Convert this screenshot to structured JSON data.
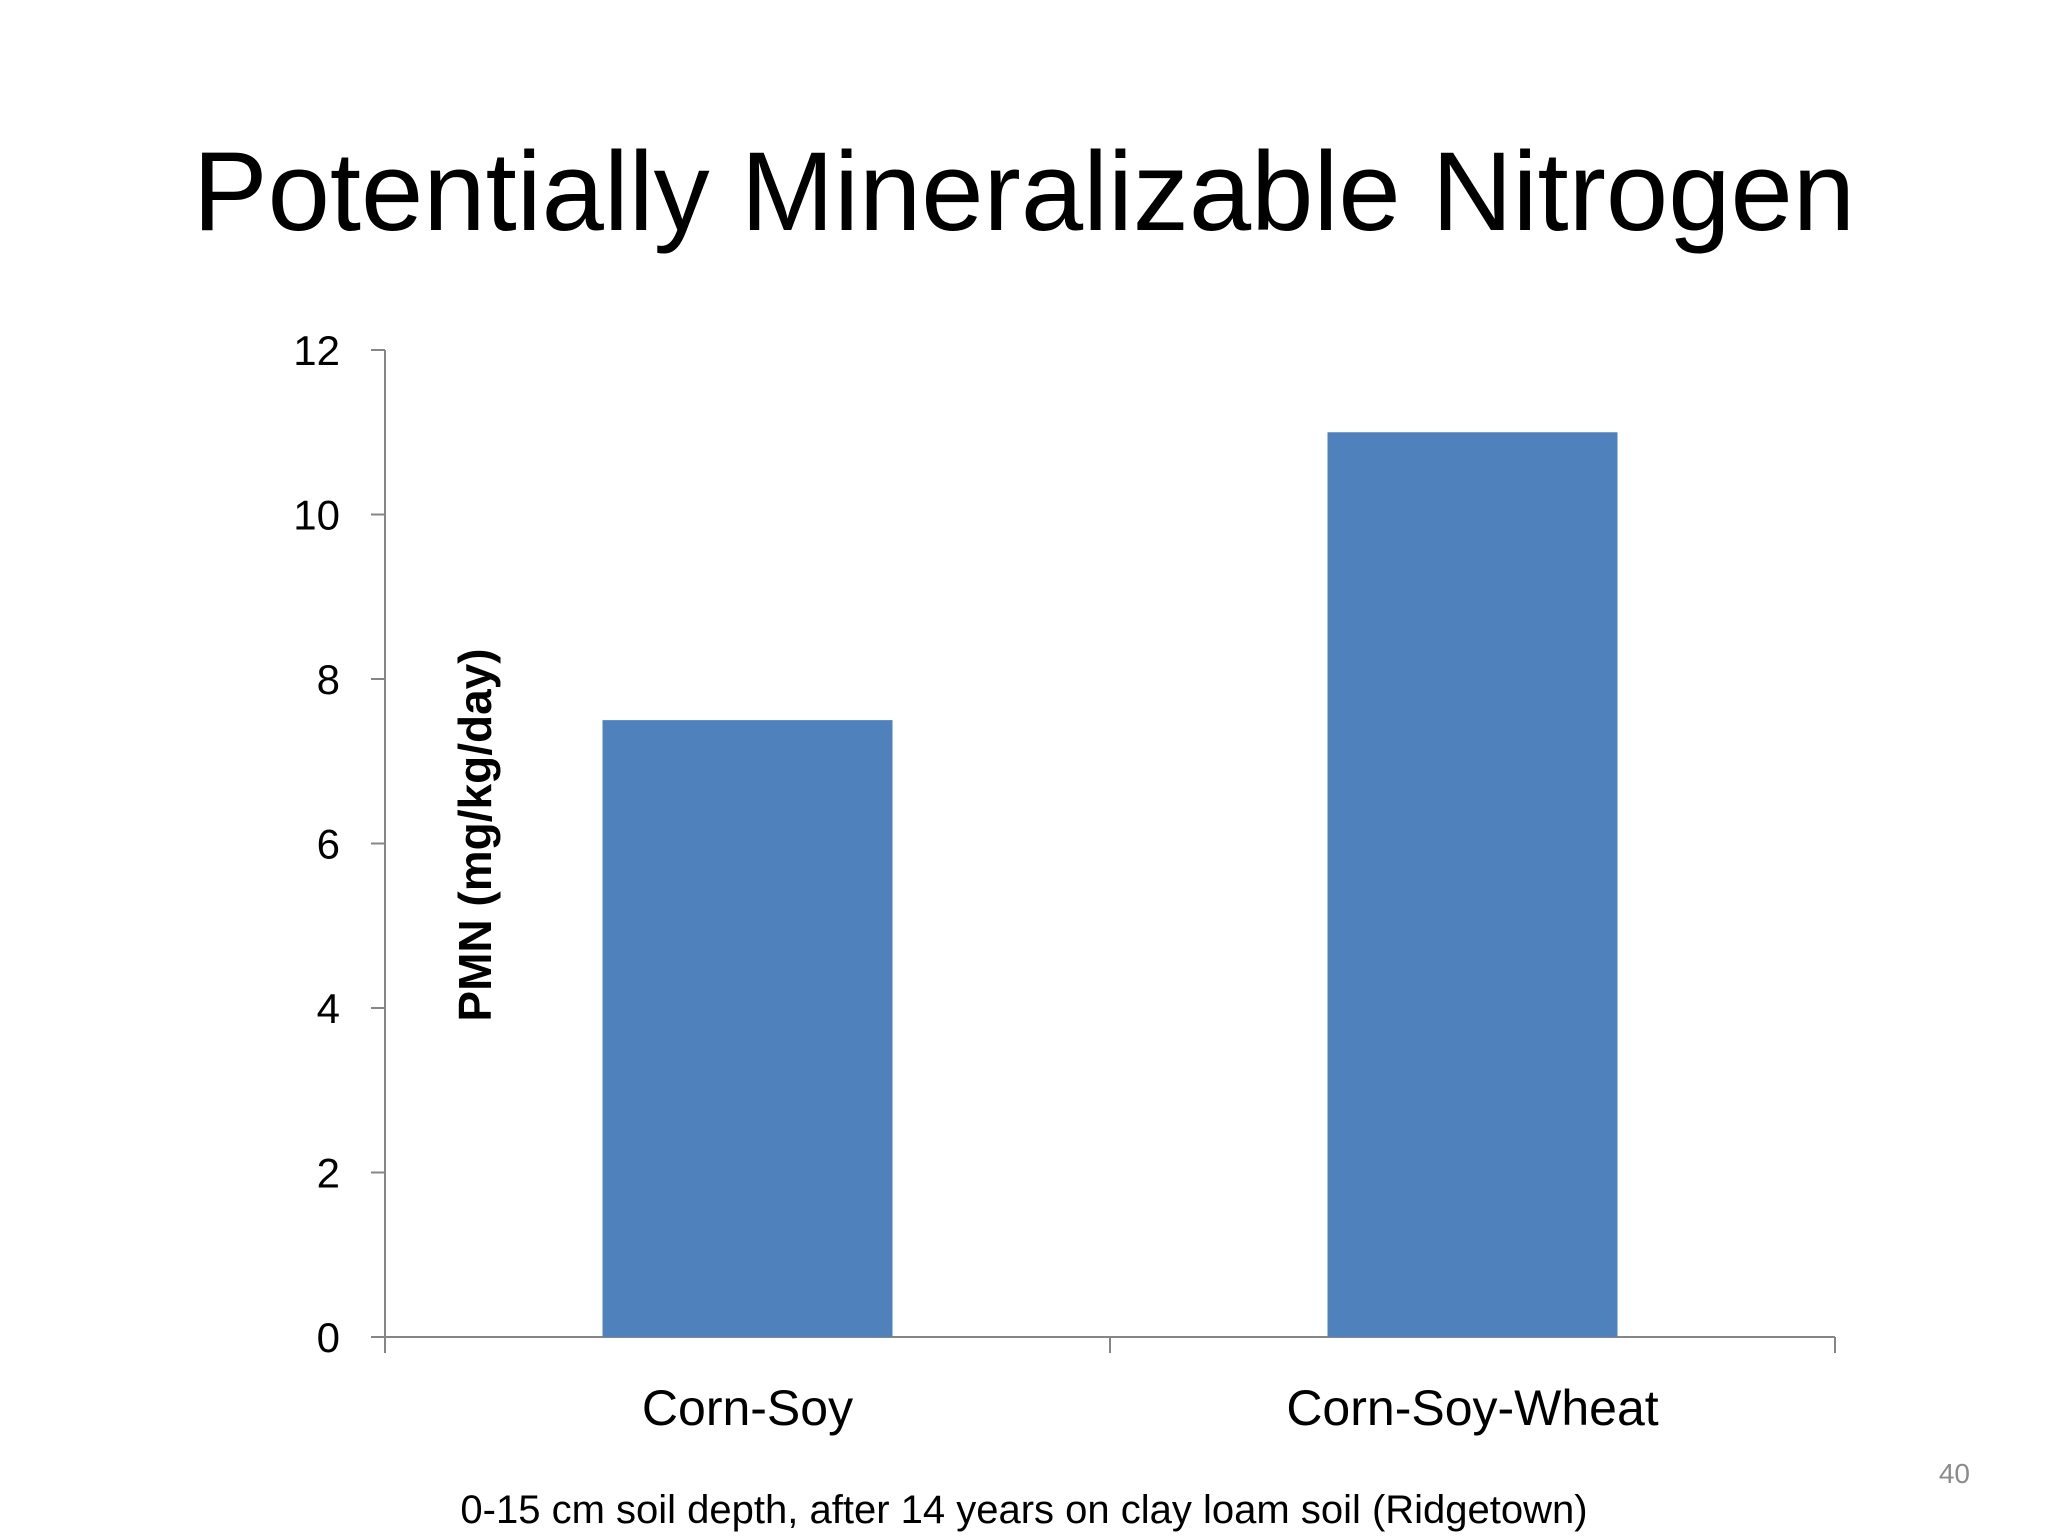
{
  "slide": {
    "title": "Potentially Mineralizable Nitrogen",
    "footnote": "0-15 cm soil depth, after 14 years on clay loam soil (Ridgetown)",
    "page_number": "40"
  },
  "chart_data": {
    "type": "bar",
    "categories": [
      "Corn-Soy",
      "Corn-Soy-Wheat"
    ],
    "values": [
      7.5,
      11
    ],
    "ylabel": "PMN (mg/kg/day)",
    "ylim": [
      0,
      12
    ],
    "yticks": [
      "0",
      "2",
      "4",
      "6",
      "8",
      "10",
      "12"
    ],
    "grid": false,
    "bar_color": "#4f81bd",
    "axis_color": "#868686"
  }
}
